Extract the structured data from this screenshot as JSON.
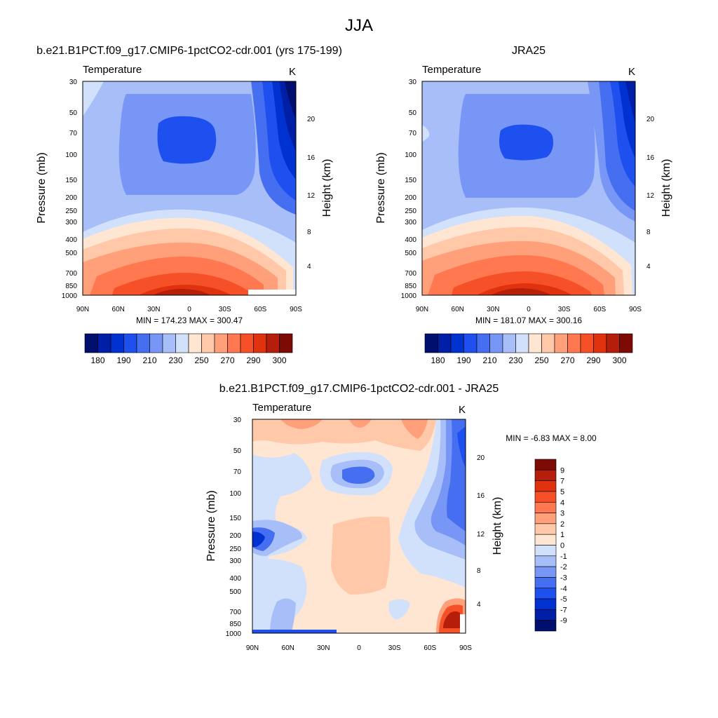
{
  "main_title": "JJA",
  "chart_data": [
    {
      "type": "heatmap",
      "title": "b.e21.B1PCT.f09_g17.CMIP6-1pctCO2-cdr.001 (yrs 175-199)",
      "subtitle_left": "Temperature",
      "subtitle_right": "K",
      "ylabel": "Pressure (mb)",
      "y2label": "Height (km)",
      "xticks": [
        "90N",
        "60N",
        "30N",
        "0",
        "30S",
        "60S",
        "90S"
      ],
      "yticks": [
        "30",
        "50",
        "70",
        "100",
        "150",
        "200",
        "250",
        "300",
        "400",
        "500",
        "700",
        "850",
        "1000"
      ],
      "y2ticks": [
        "20",
        "16",
        "12",
        "8",
        "4"
      ],
      "stats": "MIN = 174.23  MAX = 300.47",
      "min": 174.23,
      "max": 300.47,
      "colorbar_labels": [
        "180",
        "190",
        "210",
        "230",
        "250",
        "270",
        "290",
        "300"
      ]
    },
    {
      "type": "heatmap",
      "title": "JRA25",
      "subtitle_left": "Temperature",
      "subtitle_right": "K",
      "ylabel": "Pressure (mb)",
      "y2label": "Height (km)",
      "xticks": [
        "90N",
        "60N",
        "30N",
        "0",
        "30S",
        "60S",
        "90S"
      ],
      "yticks": [
        "30",
        "50",
        "70",
        "100",
        "150",
        "200",
        "250",
        "300",
        "400",
        "500",
        "700",
        "850",
        "1000"
      ],
      "y2ticks": [
        "20",
        "16",
        "12",
        "8",
        "4"
      ],
      "stats": "MIN = 181.07  MAX = 300.16",
      "min": 181.07,
      "max": 300.16,
      "colorbar_labels": [
        "180",
        "190",
        "210",
        "230",
        "250",
        "270",
        "290",
        "300"
      ]
    },
    {
      "type": "heatmap",
      "title": "b.e21.B1PCT.f09_g17.CMIP6-1pctCO2-cdr.001 - JRA25",
      "subtitle_left": "Temperature",
      "subtitle_right": "K",
      "ylabel": "Pressure (mb)",
      "y2label": "Height (km)",
      "xticks": [
        "90N",
        "60N",
        "30N",
        "0",
        "30S",
        "60S",
        "90S"
      ],
      "yticks": [
        "30",
        "50",
        "70",
        "100",
        "150",
        "200",
        "250",
        "300",
        "400",
        "500",
        "700",
        "850",
        "1000"
      ],
      "y2ticks": [
        "20",
        "16",
        "12",
        "8",
        "4"
      ],
      "stats": "MIN =  -6.83  MAX =   8.00",
      "min": -6.83,
      "max": 8.0,
      "colorbar_labels": [
        "9",
        "7",
        "5",
        "4",
        "3",
        "2",
        "1",
        "0",
        "-1",
        "-2",
        "-3",
        "-4",
        "-5",
        "-7",
        "-9"
      ]
    }
  ],
  "colors": {
    "field_scale": [
      "#000e6e",
      "#001fa6",
      "#0032d2",
      "#1e50f0",
      "#466ef0",
      "#7896f5",
      "#a8bef8",
      "#d2e1fb",
      "#ffe6d2",
      "#ffc8a8",
      "#ffa07a",
      "#ff7850",
      "#f55028",
      "#e1320f",
      "#b41e0a",
      "#7d0a05"
    ],
    "diff_scale": [
      "#7d0a05",
      "#b41e0a",
      "#e1320f",
      "#f55028",
      "#ff7850",
      "#ffa07a",
      "#ffc8a8",
      "#ffe6d2",
      "#d2e1fb",
      "#a8bef8",
      "#7896f5",
      "#466ef0",
      "#1e50f0",
      "#0032d2",
      "#001fa6",
      "#000e6e"
    ]
  }
}
